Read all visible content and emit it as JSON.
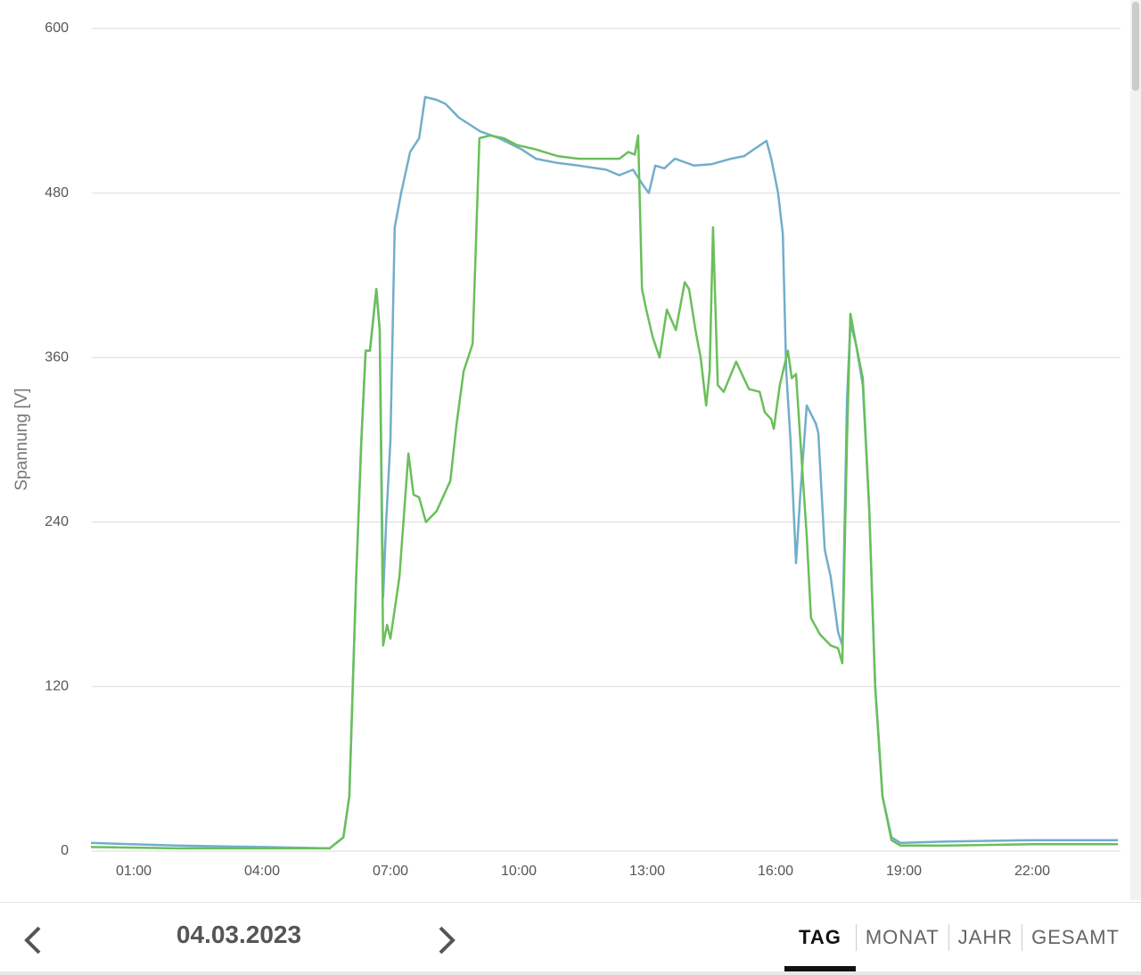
{
  "chart_data": {
    "type": "line",
    "y_label": "Spannung [V]",
    "xlim": [
      0,
      24
    ],
    "ylim": [
      0,
      600
    ],
    "xticks": [
      {
        "value": 1,
        "label": "01:00"
      },
      {
        "value": 4,
        "label": "04:00"
      },
      {
        "value": 7,
        "label": "07:00"
      },
      {
        "value": 10,
        "label": "10:00"
      },
      {
        "value": 13,
        "label": "13:00"
      },
      {
        "value": 16,
        "label": "16:00"
      },
      {
        "value": 19,
        "label": "19:00"
      },
      {
        "value": 22,
        "label": "22:00"
      }
    ],
    "yticks": [
      0,
      120,
      240,
      360,
      480,
      600
    ],
    "grid": true,
    "series": [
      {
        "color": "#72aecb",
        "x": [
          0,
          2,
          4,
          5.58,
          5.9,
          6.04,
          6.2,
          6.32,
          6.42,
          6.52,
          6.67,
          6.75,
          6.83,
          6.9,
          7.0,
          7.1,
          7.25,
          7.46,
          7.67,
          7.81,
          8.08,
          8.29,
          8.6,
          9.1,
          9.54,
          10.06,
          10.4,
          10.9,
          11.4,
          12.04,
          12.35,
          12.67,
          12.92,
          13.04,
          13.19,
          13.4,
          13.65,
          14.1,
          14.5,
          14.96,
          15.27,
          15.5,
          15.79,
          15.9,
          16.06,
          16.17,
          16.25,
          16.35,
          16.48,
          16.58,
          16.73,
          16.94,
          17.0,
          17.15,
          17.29,
          17.46,
          17.56,
          17.67,
          17.75,
          17.88,
          18.04,
          18.19,
          18.33,
          18.5,
          18.71,
          18.92,
          20,
          22,
          24
        ],
        "values": [
          6,
          4,
          3,
          2,
          10,
          40,
          200,
          300,
          365,
          365,
          410,
          380,
          185,
          240,
          300,
          455,
          480,
          510,
          520,
          550,
          548,
          545,
          535,
          525,
          520,
          512,
          505,
          502,
          500,
          497,
          493,
          497,
          485,
          480,
          500,
          498,
          505,
          500,
          501,
          505,
          507,
          512,
          518,
          505,
          480,
          450,
          350,
          300,
          210,
          260,
          325,
          312,
          305,
          220,
          200,
          160,
          150,
          330,
          385,
          370,
          340,
          250,
          120,
          40,
          10,
          6,
          7,
          8,
          8
        ]
      },
      {
        "color": "#6abf5a",
        "x": [
          0,
          2,
          4,
          5.58,
          5.9,
          6.04,
          6.2,
          6.32,
          6.42,
          6.52,
          6.67,
          6.75,
          6.83,
          6.92,
          7.0,
          7.21,
          7.42,
          7.54,
          7.67,
          7.83,
          8.08,
          8.4,
          8.54,
          8.71,
          8.92,
          9.08,
          9.33,
          9.65,
          9.96,
          10.38,
          10.9,
          11.4,
          12.04,
          12.35,
          12.56,
          12.71,
          12.79,
          12.88,
          12.98,
          13.13,
          13.29,
          13.46,
          13.67,
          13.88,
          13.98,
          14.13,
          14.25,
          14.38,
          14.46,
          14.54,
          14.65,
          14.79,
          15.08,
          15.38,
          15.63,
          15.75,
          15.9,
          15.96,
          16.1,
          16.29,
          16.38,
          16.48,
          16.58,
          16.73,
          16.83,
          17.04,
          17.29,
          17.46,
          17.56,
          17.67,
          17.75,
          17.88,
          18.04,
          18.19,
          18.33,
          18.5,
          18.71,
          18.92,
          20,
          22,
          24
        ],
        "values": [
          3,
          2,
          2,
          2,
          10,
          40,
          200,
          300,
          365,
          365,
          410,
          380,
          150,
          165,
          155,
          200,
          290,
          260,
          258,
          240,
          248,
          270,
          310,
          350,
          370,
          520,
          522,
          520,
          515,
          512,
          507,
          505,
          505,
          505,
          510,
          508,
          522,
          410,
          395,
          375,
          360,
          395,
          380,
          415,
          410,
          380,
          360,
          325,
          350,
          455,
          340,
          335,
          357,
          337,
          335,
          320,
          315,
          308,
          340,
          365,
          345,
          348,
          300,
          230,
          170,
          158,
          150,
          148,
          137,
          300,
          392,
          370,
          345,
          250,
          120,
          40,
          8,
          4,
          4,
          5,
          5
        ]
      }
    ]
  },
  "controls": {
    "date": "04.03.2023",
    "tabs": [
      "TAG",
      "MONAT",
      "JAHR",
      "GESAMT"
    ]
  }
}
